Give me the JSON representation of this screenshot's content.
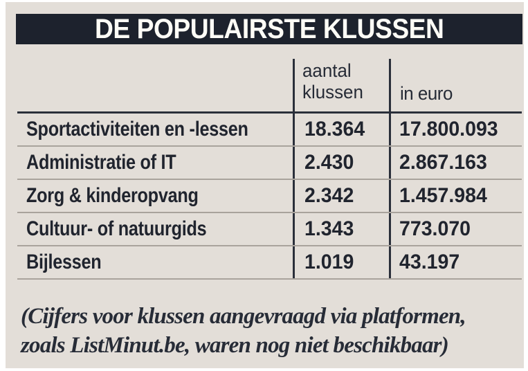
{
  "title": "DE POPULAIRSTE KLUSSEN",
  "header": {
    "col1_line1": "aantal",
    "col1_line2": "klussen",
    "col2": "in euro"
  },
  "rows": [
    {
      "label": "Sportactiviteiten en -lessen",
      "aantal": "18.364",
      "euro": "17.800.093"
    },
    {
      "label": "Administratie of IT",
      "aantal": "2.430",
      "euro": "2.867.163"
    },
    {
      "label": "Zorg & kinderopvang",
      "aantal": "2.342",
      "euro": "1.457.984"
    },
    {
      "label": "Cultuur- of natuurgids",
      "aantal": "1.343",
      "euro": "773.070"
    },
    {
      "label": "Bijlessen",
      "aantal": "1.019",
      "euro": "43.197"
    }
  ],
  "footnote": {
    "line1": "(Cijfers voor klussen aangevraagd via platformen,",
    "line2": "zoals ListMinut.be, waren nog niet beschikbaar)"
  },
  "colors": {
    "background": "#e3ded8",
    "title_bar": "#1d222d",
    "text": "#20242e",
    "separator_line": "#a9a39c",
    "rule_line": "#2a2f3a",
    "title_text": "#fdfcf6"
  },
  "chart_data": {
    "type": "table",
    "title": "DE POPULAIRSTE KLUSSEN",
    "columns": [
      "",
      "aantal klussen",
      "in euro"
    ],
    "rows": [
      [
        "Sportactiviteiten en -lessen",
        18364,
        17800093
      ],
      [
        "Administratie of IT",
        2430,
        2867163
      ],
      [
        "Zorg & kinderopvang",
        2342,
        1457984
      ],
      [
        "Cultuur- of natuurgids",
        1343,
        773070
      ],
      [
        "Bijlessen",
        1019,
        43197
      ]
    ],
    "footnote": "(Cijfers voor klussen aangevraagd via platformen, zoals ListMinut.be, waren nog niet beschikbaar)"
  }
}
